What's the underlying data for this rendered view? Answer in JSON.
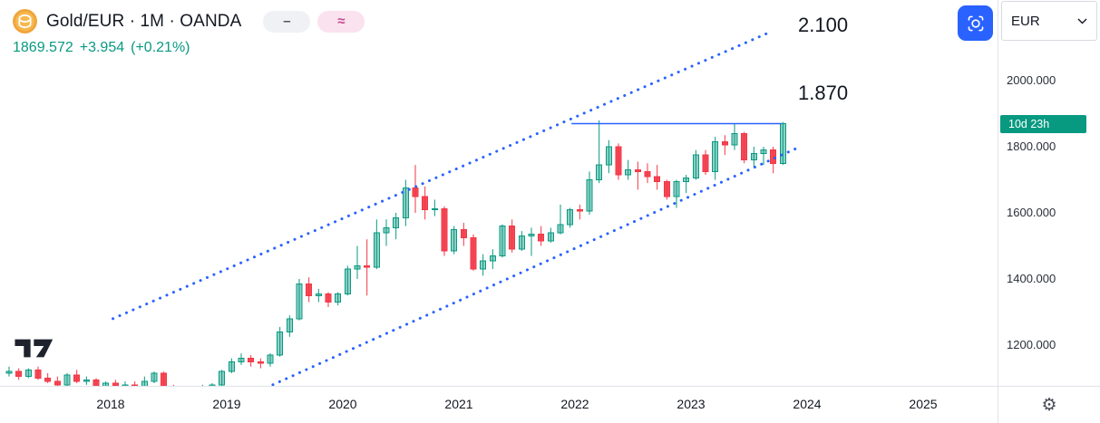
{
  "header": {
    "symbol_title": "Gold/EUR · 1M · OANDA",
    "price": {
      "last": "1869.572",
      "change": "+3.954",
      "change_pct": "(+0.21%)"
    },
    "chips": [
      {
        "name": "line-drawing-chip",
        "glyph": "–"
      },
      {
        "name": "wave-drawing-chip",
        "glyph": "≈"
      }
    ]
  },
  "price_scale": {
    "currency": "EUR",
    "labels": [
      "2000.000",
      "1800.000",
      "1600.000",
      "1400.000",
      "1200.000"
    ],
    "countdown": "10d 23h"
  },
  "time_scale": {
    "labels": [
      "2018",
      "2019",
      "2020",
      "2021",
      "2022",
      "2023",
      "2024",
      "2025"
    ]
  },
  "annotations": {
    "upper": "2.100",
    "lower": "1.870"
  },
  "icons": {
    "gear": "⚙"
  },
  "colors": {
    "up": "#089981",
    "down": "#F23645",
    "accent": "#2962FF",
    "text": "#131722"
  },
  "chart_data": {
    "type": "candlestick",
    "symbol": "Gold/EUR",
    "interval": "1M",
    "exchange": "OANDA",
    "last_price": 1869.572,
    "change": 3.954,
    "change_percent": 0.21,
    "bar_close_countdown": "10d 23h",
    "y_axis": {
      "ticks": [
        2000,
        1800,
        1600,
        1400,
        1200
      ],
      "visible_range": [
        1079,
        2244
      ],
      "label_format": "0.000"
    },
    "x_axis": {
      "ticks": [
        "2018",
        "2019",
        "2020",
        "2021",
        "2022",
        "2023",
        "2024",
        "2025"
      ],
      "visible_range": [
        2017.05,
        2025.9
      ]
    },
    "candles": [
      [
        "2017-02",
        1115,
        1135,
        1105,
        1120
      ],
      [
        "2017-03",
        1120,
        1130,
        1095,
        1105
      ],
      [
        "2017-04",
        1105,
        1130,
        1100,
        1125
      ],
      [
        "2017-05",
        1125,
        1135,
        1095,
        1100
      ],
      [
        "2017-06",
        1100,
        1115,
        1085,
        1090
      ],
      [
        "2017-07",
        1090,
        1105,
        1075,
        1080
      ],
      [
        "2017-08",
        1080,
        1115,
        1075,
        1110
      ],
      [
        "2017-09",
        1110,
        1125,
        1085,
        1090
      ],
      [
        "2017-10",
        1090,
        1105,
        1080,
        1095
      ],
      [
        "2017-11",
        1095,
        1100,
        1070,
        1075
      ],
      [
        "2017-12",
        1075,
        1090,
        1060,
        1085
      ],
      [
        "2018-01",
        1085,
        1095,
        1060,
        1070
      ],
      [
        "2018-02",
        1070,
        1090,
        1055,
        1080
      ],
      [
        "2018-03",
        1080,
        1090,
        1060,
        1075
      ],
      [
        "2018-04",
        1075,
        1105,
        1070,
        1090
      ],
      [
        "2018-05",
        1090,
        1120,
        1085,
        1115
      ],
      [
        "2018-06",
        1115,
        1120,
        1070,
        1072
      ],
      [
        "2018-07",
        1072,
        1080,
        1045,
        1050
      ],
      [
        "2018-08",
        1050,
        1060,
        1020,
        1035
      ],
      [
        "2018-09",
        1035,
        1045,
        1015,
        1025
      ],
      [
        "2018-10",
        1025,
        1080,
        1020,
        1070
      ],
      [
        "2018-11",
        1070,
        1085,
        1055,
        1080
      ],
      [
        "2018-12",
        1080,
        1125,
        1075,
        1120
      ],
      [
        "2019-01",
        1120,
        1160,
        1115,
        1150
      ],
      [
        "2019-02",
        1150,
        1175,
        1140,
        1160
      ],
      [
        "2019-03",
        1160,
        1170,
        1135,
        1150
      ],
      [
        "2019-04",
        1150,
        1160,
        1130,
        1145
      ],
      [
        "2019-05",
        1145,
        1175,
        1135,
        1170
      ],
      [
        "2019-06",
        1170,
        1255,
        1165,
        1240
      ],
      [
        "2019-07",
        1240,
        1290,
        1225,
        1280
      ],
      [
        "2019-08",
        1280,
        1400,
        1275,
        1385
      ],
      [
        "2019-09",
        1385,
        1405,
        1330,
        1350
      ],
      [
        "2019-10",
        1350,
        1370,
        1330,
        1355
      ],
      [
        "2019-11",
        1355,
        1360,
        1315,
        1330
      ],
      [
        "2019-12",
        1330,
        1360,
        1320,
        1355
      ],
      [
        "2020-01",
        1355,
        1440,
        1350,
        1430
      ],
      [
        "2020-02",
        1430,
        1500,
        1400,
        1440
      ],
      [
        "2020-03",
        1440,
        1520,
        1350,
        1435
      ],
      [
        "2020-04",
        1435,
        1580,
        1430,
        1540
      ],
      [
        "2020-05",
        1540,
        1580,
        1500,
        1555
      ],
      [
        "2020-06",
        1555,
        1600,
        1520,
        1585
      ],
      [
        "2020-07",
        1585,
        1700,
        1560,
        1675
      ],
      [
        "2020-08",
        1675,
        1745,
        1600,
        1650
      ],
      [
        "2020-09",
        1650,
        1680,
        1580,
        1610
      ],
      [
        "2020-10",
        1610,
        1640,
        1590,
        1612
      ],
      [
        "2020-11",
        1612,
        1620,
        1470,
        1485
      ],
      [
        "2020-12",
        1485,
        1560,
        1475,
        1550
      ],
      [
        "2021-01",
        1550,
        1570,
        1500,
        1525
      ],
      [
        "2021-02",
        1525,
        1535,
        1425,
        1430
      ],
      [
        "2021-03",
        1430,
        1475,
        1410,
        1455
      ],
      [
        "2021-04",
        1455,
        1490,
        1430,
        1470
      ],
      [
        "2021-05",
        1470,
        1565,
        1465,
        1560
      ],
      [
        "2021-06",
        1560,
        1580,
        1480,
        1490
      ],
      [
        "2021-07",
        1490,
        1545,
        1485,
        1530
      ],
      [
        "2021-08",
        1530,
        1555,
        1470,
        1535
      ],
      [
        "2021-09",
        1535,
        1560,
        1500,
        1515
      ],
      [
        "2021-10",
        1515,
        1555,
        1510,
        1540
      ],
      [
        "2021-11",
        1540,
        1625,
        1535,
        1565
      ],
      [
        "2021-12",
        1565,
        1615,
        1555,
        1610
      ],
      [
        "2022-01",
        1610,
        1625,
        1580,
        1605
      ],
      [
        "2022-02",
        1605,
        1725,
        1595,
        1700
      ],
      [
        "2022-03",
        1700,
        1880,
        1690,
        1745
      ],
      [
        "2022-04",
        1745,
        1820,
        1720,
        1800
      ],
      [
        "2022-05",
        1800,
        1810,
        1700,
        1715
      ],
      [
        "2022-06",
        1715,
        1760,
        1700,
        1730
      ],
      [
        "2022-07",
        1730,
        1755,
        1670,
        1725
      ],
      [
        "2022-08",
        1725,
        1750,
        1690,
        1710
      ],
      [
        "2022-09",
        1710,
        1745,
        1670,
        1695
      ],
      [
        "2022-10",
        1695,
        1700,
        1640,
        1650
      ],
      [
        "2022-11",
        1650,
        1700,
        1615,
        1695
      ],
      [
        "2022-12",
        1695,
        1715,
        1660,
        1705
      ],
      [
        "2023-01",
        1705,
        1790,
        1700,
        1775
      ],
      [
        "2023-02",
        1775,
        1790,
        1715,
        1725
      ],
      [
        "2023-03",
        1725,
        1830,
        1700,
        1815
      ],
      [
        "2023-04",
        1815,
        1835,
        1775,
        1805
      ],
      [
        "2023-05",
        1805,
        1870,
        1790,
        1840
      ],
      [
        "2023-06",
        1840,
        1845,
        1750,
        1760
      ],
      [
        "2023-07",
        1760,
        1800,
        1740,
        1780
      ],
      [
        "2023-08",
        1780,
        1800,
        1745,
        1790
      ],
      [
        "2023-09",
        1790,
        1800,
        1720,
        1750
      ],
      [
        "2023-10",
        1750,
        1875,
        1745,
        1869.572
      ]
    ],
    "drawings": {
      "trend_channel_upper": {
        "from": {
          "t": 2018.02,
          "p": 1280
        },
        "to": {
          "t": 2023.65,
          "p": 2142
        },
        "style": "dotted",
        "color": "#2962FF",
        "label": "2.100"
      },
      "trend_channel_lower": {
        "from": {
          "t": 2019.34,
          "p": 1071
        },
        "to": {
          "t": 2023.92,
          "p": 1797
        },
        "style": "dotted",
        "color": "#2962FF"
      },
      "horizontal_line": {
        "from_t": 2021.97,
        "to_t": 2023.78,
        "price": 1870,
        "color": "#2962FF",
        "label": "1.870"
      }
    }
  }
}
